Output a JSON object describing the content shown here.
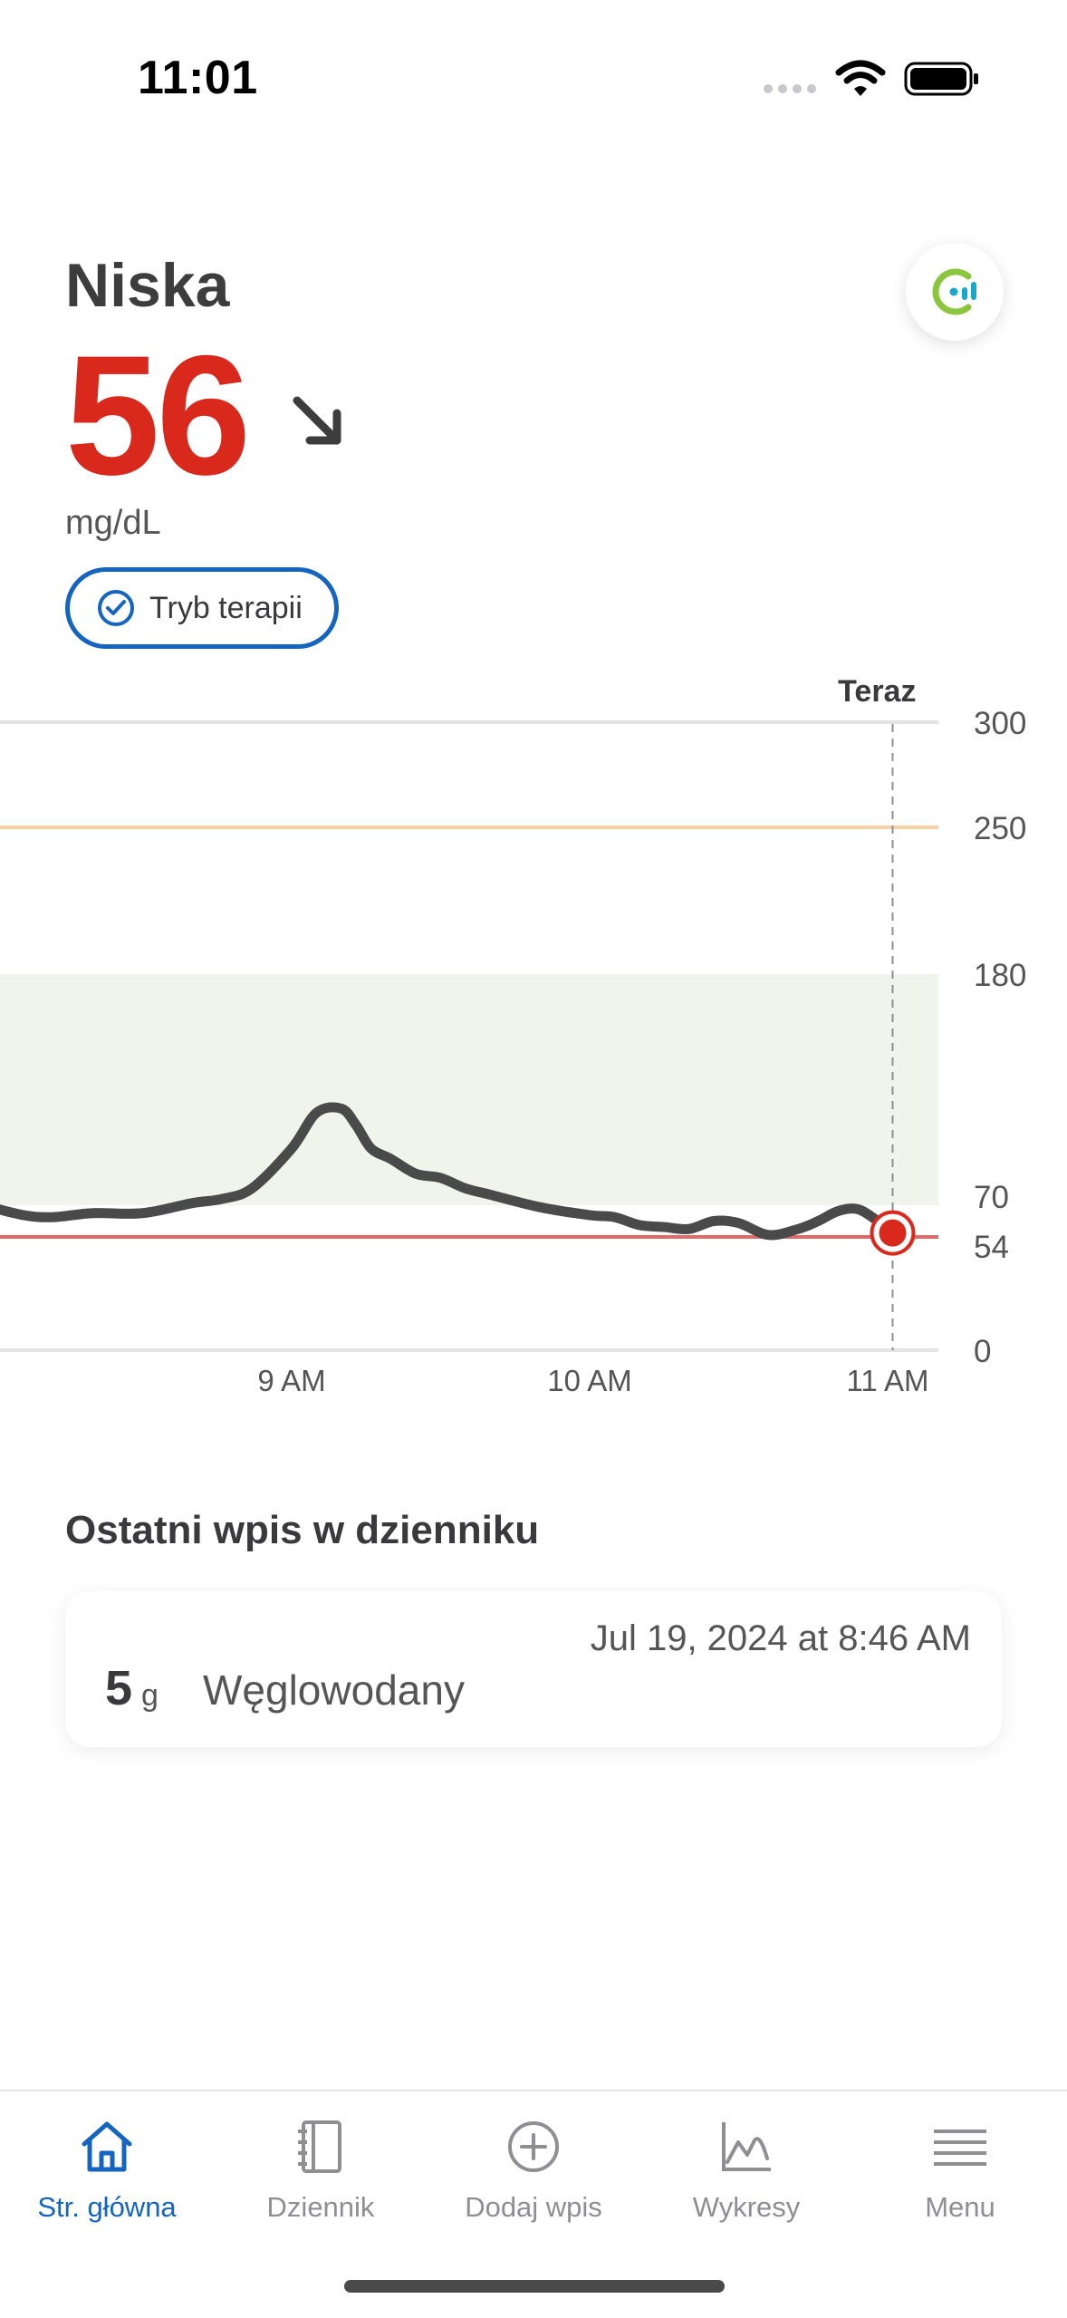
{
  "status_bar": {
    "time": "11:01"
  },
  "reading": {
    "state": "Niska",
    "value": "56",
    "trend_arrow": "↘",
    "trend_icon": "arrow-down-right-icon",
    "unit": "mg/dL",
    "therapy_mode_label": "Tryb terapii"
  },
  "colors": {
    "low_red": "#d9291c",
    "accent_blue": "#1565c0",
    "target_range_fill": "#f1f4ea",
    "high_threshold": "#f9cfa5",
    "low_threshold": "#e06a6a",
    "curve": "#4a4a4a"
  },
  "chart_data": {
    "type": "line",
    "now_label": "Teraz",
    "x_ticks": [
      "9 AM",
      "10 AM",
      "11 AM"
    ],
    "y_ticks": [
      "300",
      "250",
      "180",
      "70",
      "54",
      "0"
    ],
    "ylim": [
      0,
      300
    ],
    "target_range": [
      70,
      180
    ],
    "high_threshold": 250,
    "low_threshold": 54,
    "series": [
      {
        "x": [
          "7:58",
          "8:06",
          "8:12",
          "8:20",
          "8:30",
          "8:40",
          "8:46",
          "8:52",
          "9:00",
          "9:05",
          "9:10",
          "9:13",
          "9:16",
          "9:20",
          "9:25",
          "9:30",
          "9:35",
          "9:40",
          "9:50",
          "10:00",
          "10:05",
          "10:10",
          "10:15",
          "10:20",
          "10:25",
          "10:30",
          "10:36",
          "10:42",
          "10:46",
          "10:50",
          "10:54",
          "10:58",
          "11:01"
        ],
        "y": [
          70,
          65,
          64,
          66,
          66,
          71,
          73,
          78,
          97,
          114,
          116,
          108,
          97,
          92,
          85,
          83,
          78,
          75,
          69,
          65,
          64,
          60,
          59,
          58,
          62,
          61,
          55,
          58,
          62,
          67,
          68,
          62,
          56
        ]
      }
    ]
  },
  "log": {
    "title": "Ostatni wpis w dzienniku",
    "date": "Jul 19, 2024 at 8:46 AM",
    "amount": "5",
    "amount_unit": "g",
    "type": "Węglowodany"
  },
  "nav": {
    "items": [
      {
        "label": "Str. główna",
        "icon": "home-icon",
        "active": true
      },
      {
        "label": "Dziennik",
        "icon": "notebook-icon",
        "active": false
      },
      {
        "label": "Dodaj wpis",
        "icon": "add-circle-icon",
        "active": false
      },
      {
        "label": "Wykresy",
        "icon": "chart-icon",
        "active": false
      },
      {
        "label": "Menu",
        "icon": "hamburger-menu-icon",
        "active": false
      }
    ]
  }
}
